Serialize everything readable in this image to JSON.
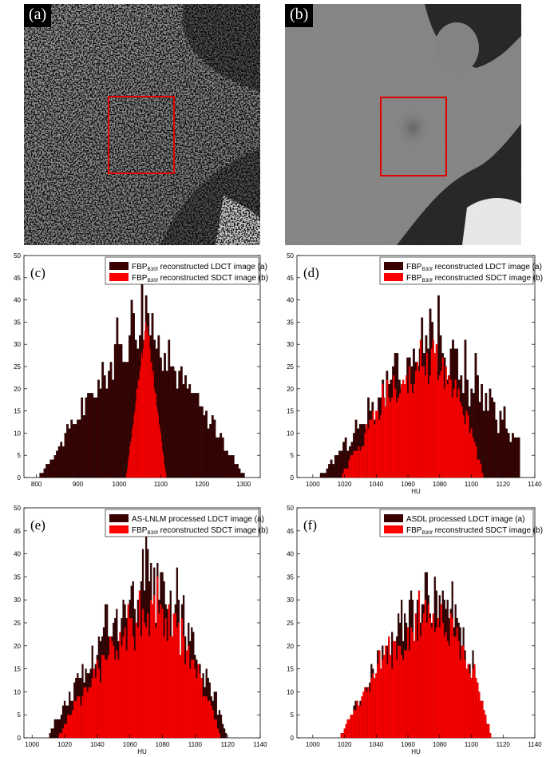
{
  "images": [
    {
      "label": "(a)"
    },
    {
      "label": "(b)"
    }
  ],
  "colors": {
    "ldct": "#3a0000",
    "sdct": "#ff0000",
    "roi": "#e00000"
  },
  "chart_data": [
    {
      "type": "bar",
      "panel": "(c)",
      "xlabel": "",
      "ylabel": "",
      "xlim": [
        770,
        1340
      ],
      "ylim": [
        0,
        50
      ],
      "xticks": [
        800,
        900,
        1000,
        1100,
        1200,
        1300
      ],
      "yticks": [
        0,
        5,
        10,
        15,
        20,
        25,
        30,
        35,
        40,
        45,
        50
      ],
      "legend": "top-right",
      "series": [
        {
          "name": "FBP_B30f reconstructed LDCT image (a)",
          "kind": "triangle",
          "center": 1055,
          "halfwidth": 250,
          "peak": 36,
          "noise": 6,
          "step": 5,
          "lo": 790,
          "hi": 1310
        },
        {
          "name": "FBP_B30f reconstructed SDCT image (b)",
          "kind": "triangle",
          "center": 1065,
          "halfwidth": 48,
          "peak": 35,
          "noise": 2,
          "step": 2,
          "lo": 1018,
          "hi": 1112
        }
      ]
    },
    {
      "type": "bar",
      "panel": "(d)",
      "xlabel": "HU",
      "ylabel": "",
      "xlim": [
        990,
        1140
      ],
      "ylim": [
        0,
        50
      ],
      "xticks": [
        1000,
        1020,
        1040,
        1060,
        1080,
        1100,
        1120,
        1140
      ],
      "yticks": [
        0,
        5,
        10,
        15,
        20,
        25,
        30,
        35,
        40,
        45,
        50
      ],
      "legend": "top-right",
      "series": [
        {
          "name": "FBP_B30f reconstructed LDCT image (a)",
          "kind": "triangle",
          "center": 1075,
          "halfwidth": 70,
          "peak": 33,
          "noise": 9,
          "step": 1.3,
          "lo": 1000,
          "hi": 1130
        },
        {
          "name": "FBP_B30f reconstructed SDCT image (b)",
          "kind": "skewed",
          "mode": 1078,
          "left": 60,
          "right": 30,
          "peak": 27,
          "noise": 5,
          "step": 1,
          "lo": 1008,
          "hi": 1118
        }
      ]
    },
    {
      "type": "bar",
      "panel": "(e)",
      "xlabel": "HU",
      "ylabel": "",
      "xlim": [
        995,
        1140
      ],
      "ylim": [
        0,
        50
      ],
      "xticks": [
        1000,
        1020,
        1040,
        1060,
        1080,
        1100,
        1120,
        1140
      ],
      "yticks": [
        0,
        5,
        10,
        15,
        20,
        25,
        30,
        35,
        40,
        45,
        50
      ],
      "legend": "top-right",
      "series": [
        {
          "name": "AS-LNLM processed LDCT image (a)",
          "kind": "skewed",
          "mode": 1075,
          "left": 65,
          "right": 45,
          "peak": 31,
          "noise": 8,
          "step": 1,
          "lo": 1008,
          "hi": 1122
        },
        {
          "name": "FBP_B30f reconstructed SDCT image (b)",
          "kind": "skewed",
          "mode": 1078,
          "left": 62,
          "right": 38,
          "peak": 27,
          "noise": 5,
          "step": 1,
          "lo": 1008,
          "hi": 1118
        }
      ]
    },
    {
      "type": "bar",
      "panel": "(f)",
      "xlabel": "HU",
      "ylabel": "",
      "xlim": [
        990,
        1140
      ],
      "ylim": [
        0,
        50
      ],
      "xticks": [
        1000,
        1020,
        1040,
        1060,
        1080,
        1100,
        1120,
        1140
      ],
      "yticks": [
        0,
        5,
        10,
        15,
        20,
        25,
        30,
        35,
        40,
        45,
        50
      ],
      "legend": "top-right",
      "series": [
        {
          "name": "ASDL processed LDCT image (a)",
          "kind": "skewed",
          "mode": 1080,
          "left": 62,
          "right": 32,
          "peak": 31,
          "noise": 7,
          "step": 1,
          "lo": 1012,
          "hi": 1118
        },
        {
          "name": "FBP_B30f reconstructed SDCT image (b)",
          "kind": "skewed",
          "mode": 1079,
          "left": 62,
          "right": 34,
          "peak": 27,
          "noise": 5,
          "step": 1,
          "lo": 1008,
          "hi": 1118
        }
      ]
    }
  ]
}
